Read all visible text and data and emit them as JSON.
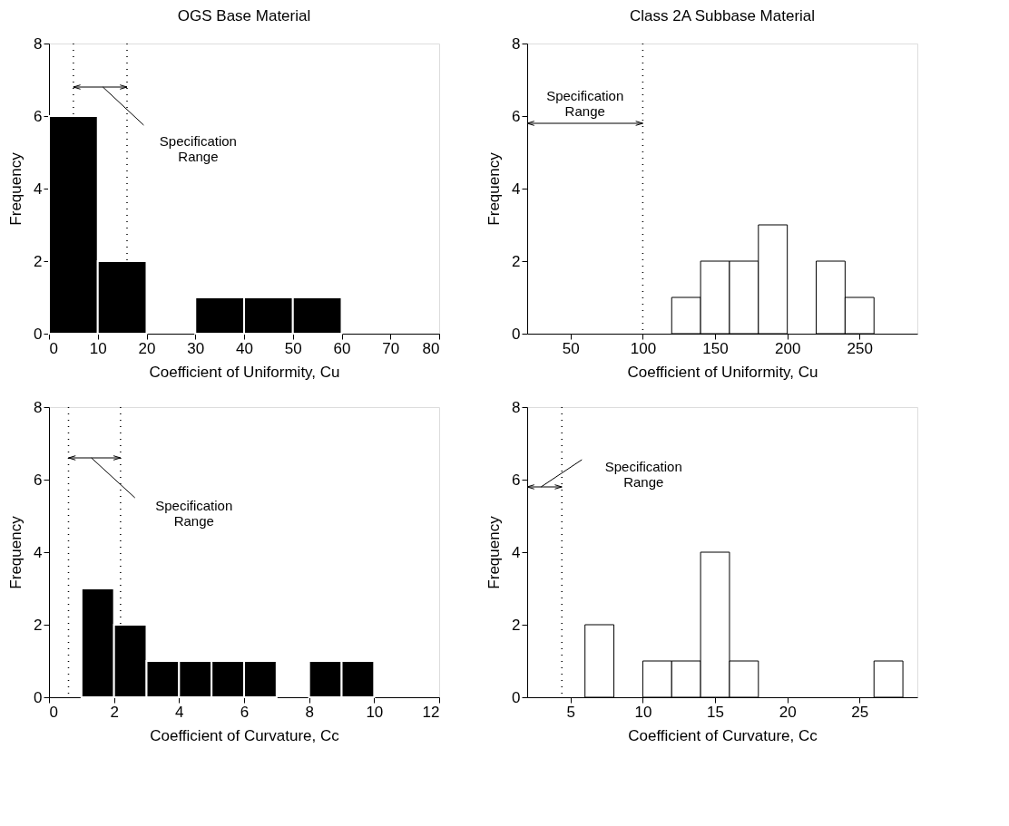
{
  "chart_data": [
    {
      "type": "histogram",
      "title": "OGS Base Material",
      "xlabel": "Coefficient of Uniformity, Cu",
      "ylabel": "Frequency",
      "bins": [
        0,
        10,
        20,
        30,
        40,
        50,
        60
      ],
      "values": [
        6,
        2,
        0,
        1,
        1,
        1
      ],
      "color": "#000000",
      "xlim": [
        0,
        80
      ],
      "xticks": [
        0,
        10,
        20,
        30,
        40,
        50,
        60,
        70,
        80
      ],
      "ylim": [
        0,
        8
      ],
      "yticks": [
        0,
        2,
        4,
        6,
        8
      ],
      "ref_lines": [
        {
          "axis": "x",
          "value": 5,
          "line_style": "dotted"
        },
        {
          "axis": "x",
          "value": 16,
          "line_style": "dotted"
        }
      ],
      "annotations": [
        "Specification Range"
      ],
      "grid": false
    },
    {
      "type": "histogram",
      "title": "Class 2A Subbase Material",
      "xlabel": "Coefficient of Uniformity, Cu",
      "ylabel": "Frequency",
      "bins": [
        120,
        140,
        160,
        180,
        200,
        220,
        240,
        260
      ],
      "values": [
        1,
        2,
        2,
        3,
        0,
        2,
        1
      ],
      "color": "#ffffff",
      "xlim": [
        20,
        290
      ],
      "xticks": [
        50,
        100,
        150,
        200,
        250
      ],
      "ylim": [
        0,
        8
      ],
      "yticks": [
        0,
        2,
        4,
        6,
        8
      ],
      "ref_lines": [
        {
          "axis": "x",
          "value": 100,
          "line_style": "dotted"
        }
      ],
      "annotations": [
        "Specification Range"
      ],
      "grid": false
    },
    {
      "type": "histogram",
      "xlabel": "Coefficient of Curvature, Cc",
      "ylabel": "Frequency",
      "bins": [
        1,
        2,
        3,
        4,
        5,
        6,
        7,
        8,
        9,
        10
      ],
      "values": [
        3,
        2,
        1,
        1,
        1,
        1,
        0,
        1,
        1
      ],
      "color": "#000000",
      "xlim": [
        0,
        12
      ],
      "xticks": [
        0,
        2,
        4,
        6,
        8,
        10,
        12
      ],
      "ylim": [
        0,
        8
      ],
      "yticks": [
        0,
        2,
        4,
        6,
        8
      ],
      "ref_lines": [
        {
          "axis": "x",
          "value": 0.6,
          "line_style": "dotted"
        },
        {
          "axis": "x",
          "value": 2.2,
          "line_style": "dotted"
        }
      ],
      "annotations": [
        "Specification Range"
      ],
      "grid": false
    },
    {
      "type": "histogram",
      "xlabel": "Coefficient of Curvature, Cc",
      "ylabel": "Frequency",
      "bins": [
        6,
        8,
        10,
        12,
        14,
        16,
        18,
        20,
        22,
        24,
        26,
        28
      ],
      "values": [
        2,
        0,
        1,
        1,
        4,
        1,
        0,
        0,
        0,
        0,
        1
      ],
      "color": "#ffffff",
      "xlim": [
        2,
        29
      ],
      "xticks": [
        5,
        10,
        15,
        20,
        25
      ],
      "ylim": [
        0,
        8
      ],
      "yticks": [
        0,
        2,
        4,
        6,
        8
      ],
      "ref_lines": [
        {
          "axis": "x",
          "value": 4.4,
          "line_style": "dotted"
        }
      ],
      "annotations": [
        "Specification Range"
      ],
      "grid": false
    }
  ]
}
